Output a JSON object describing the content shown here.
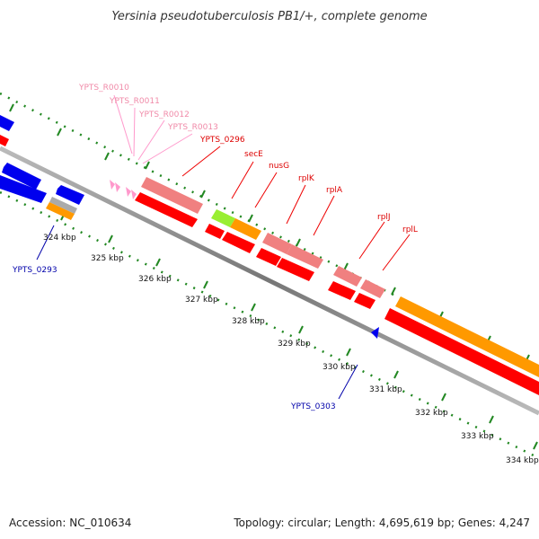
{
  "title": "Yersinia pseudotuberculosis PB1/+, complete genome",
  "footer": {
    "accession": "Accession: NC_010634",
    "summary": "Topology: circular; Length: 4,695,619 bp; Genes: 4,247"
  },
  "scale": {
    "unit": "kbp",
    "ticks": [
      {
        "label": "324 kbp"
      },
      {
        "label": "325 kbp"
      },
      {
        "label": "326 kbp"
      },
      {
        "label": "327 kbp"
      },
      {
        "label": "328 kbp"
      },
      {
        "label": "329 kbp"
      },
      {
        "label": "330 kbp"
      },
      {
        "label": "331 kbp"
      },
      {
        "label": "332 kbp"
      },
      {
        "label": "333 kbp"
      },
      {
        "label": "334 kbp"
      }
    ]
  },
  "labels": {
    "trna": [
      "YPTS_R0010",
      "YPTS_R0011",
      "YPTS_R0012",
      "YPTS_R0013"
    ],
    "red": [
      "YPTS_0296",
      "secE",
      "nusG",
      "rplK",
      "rplA",
      "rplJ",
      "rplL"
    ],
    "blue": [
      "YPTS_0293",
      "YPTS_0303"
    ]
  },
  "colors": {
    "blue": "#0000ee",
    "red": "#ff0000",
    "pink": "#f08080",
    "orange": "#ff9900",
    "green": "#99ee33",
    "grey": "#aaaaaa",
    "trna": "#ff99cc",
    "tick_green": "#228822",
    "backbone": "#888888"
  }
}
